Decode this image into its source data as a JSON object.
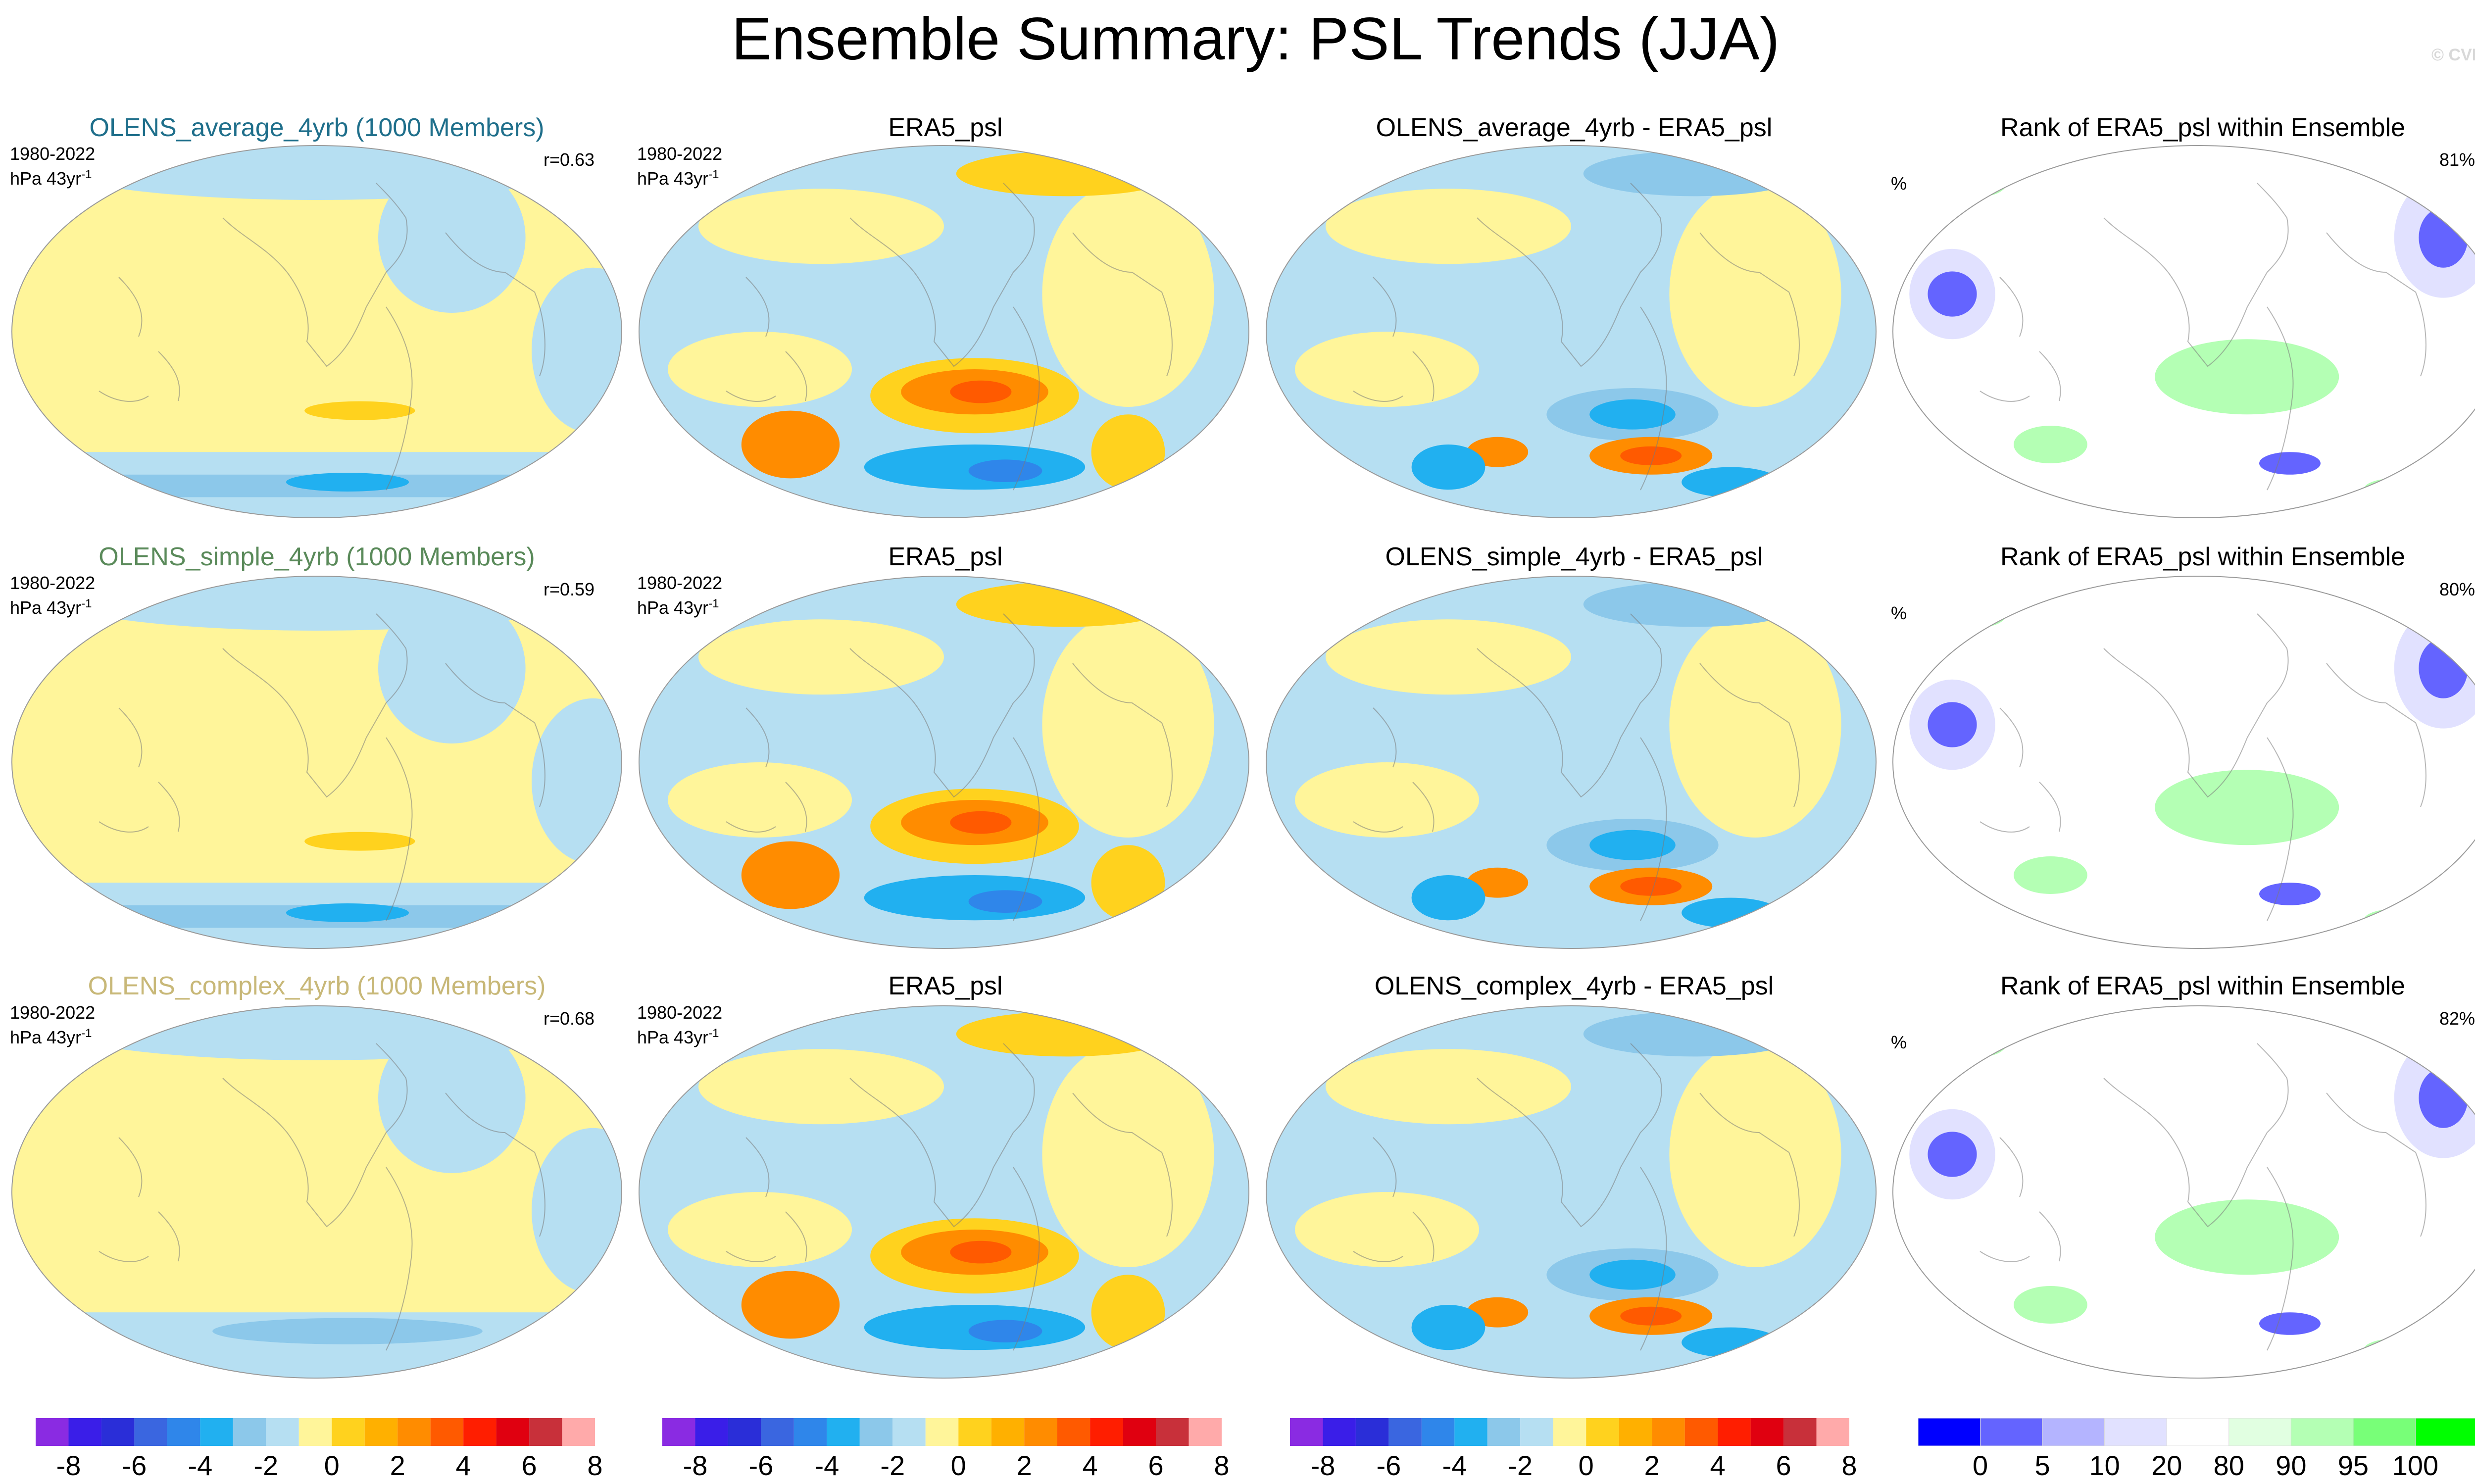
{
  "header": {
    "title": "Ensemble Summary: PSL Trends (JJA)",
    "credit": "© CVDP"
  },
  "rows": [
    {
      "ensemble_title": "OLENS_average_4yrb (1000 Members)",
      "ensemble_title_color": "#1f6f8b",
      "period": "1980-2022",
      "units": "hPa 43yr",
      "units_exp": "-1",
      "corr": "r=0.63",
      "obs_title": "ERA5_psl",
      "diff_title": "OLENS_average_4yrb - ERA5_psl",
      "rank_title": "Rank of ERA5_psl within Ensemble",
      "rank_unit": "%",
      "rank_pct": "81%"
    },
    {
      "ensemble_title": "OLENS_simple_4yrb (1000 Members)",
      "ensemble_title_color": "#5a8a5a",
      "period": "1980-2022",
      "units": "hPa 43yr",
      "units_exp": "-1",
      "corr": "r=0.59",
      "obs_title": "ERA5_psl",
      "diff_title": "OLENS_simple_4yrb - ERA5_psl",
      "rank_title": "Rank of ERA5_psl within Ensemble",
      "rank_unit": "%",
      "rank_pct": "80%"
    },
    {
      "ensemble_title": "OLENS_complex_4yrb (1000 Members)",
      "ensemble_title_color": "#c8b878",
      "period": "1980-2022",
      "units": "hPa 43yr",
      "units_exp": "-1",
      "corr": "r=0.68",
      "obs_title": "ERA5_psl",
      "diff_title": "OLENS_complex_4yrb - ERA5_psl",
      "rank_title": "Rank of ERA5_psl within Ensemble",
      "rank_unit": "%",
      "rank_pct": "82%"
    }
  ],
  "colorbar_trend": {
    "colors": [
      "#8a2be2",
      "#3a1ee8",
      "#2a2ed8",
      "#3a66e0",
      "#2f86ea",
      "#21b0f0",
      "#8cc8ea",
      "#b6dff2",
      "#fff59a",
      "#ffd21e",
      "#ffb000",
      "#ff8c00",
      "#ff5a00",
      "#ff1e00",
      "#e00010",
      "#c8303a",
      "#ffaaaa"
    ],
    "labels": [
      "-8",
      "-6",
      "-4",
      "-2",
      "0",
      "2",
      "4",
      "6",
      "8"
    ]
  },
  "colorbar_rank": {
    "colors": [
      "#0000ff",
      "#6464ff",
      "#b4b4ff",
      "#e1e1ff",
      "#ffffff",
      "#e1ffe1",
      "#b4ffb4",
      "#78ff78",
      "#00ff00"
    ],
    "labels": [
      "0",
      "5",
      "10",
      "20",
      "80",
      "90",
      "95",
      "100"
    ]
  },
  "legend_colors": {
    "neg_light": "#b6dff2",
    "neg_mid": "#8cc8ea",
    "neg_strong": "#21b0f0",
    "neg_deep": "#2f86ea",
    "pos_light": "#fff59a",
    "pos_mid": "#ffd21e",
    "pos_strong": "#ffb000",
    "pos_deep": "#ff8c00",
    "pos_max": "#ff5a00",
    "rank_low": "#6464ff",
    "rank_low_light": "#e1e1ff",
    "rank_high": "#b4ffb4"
  }
}
